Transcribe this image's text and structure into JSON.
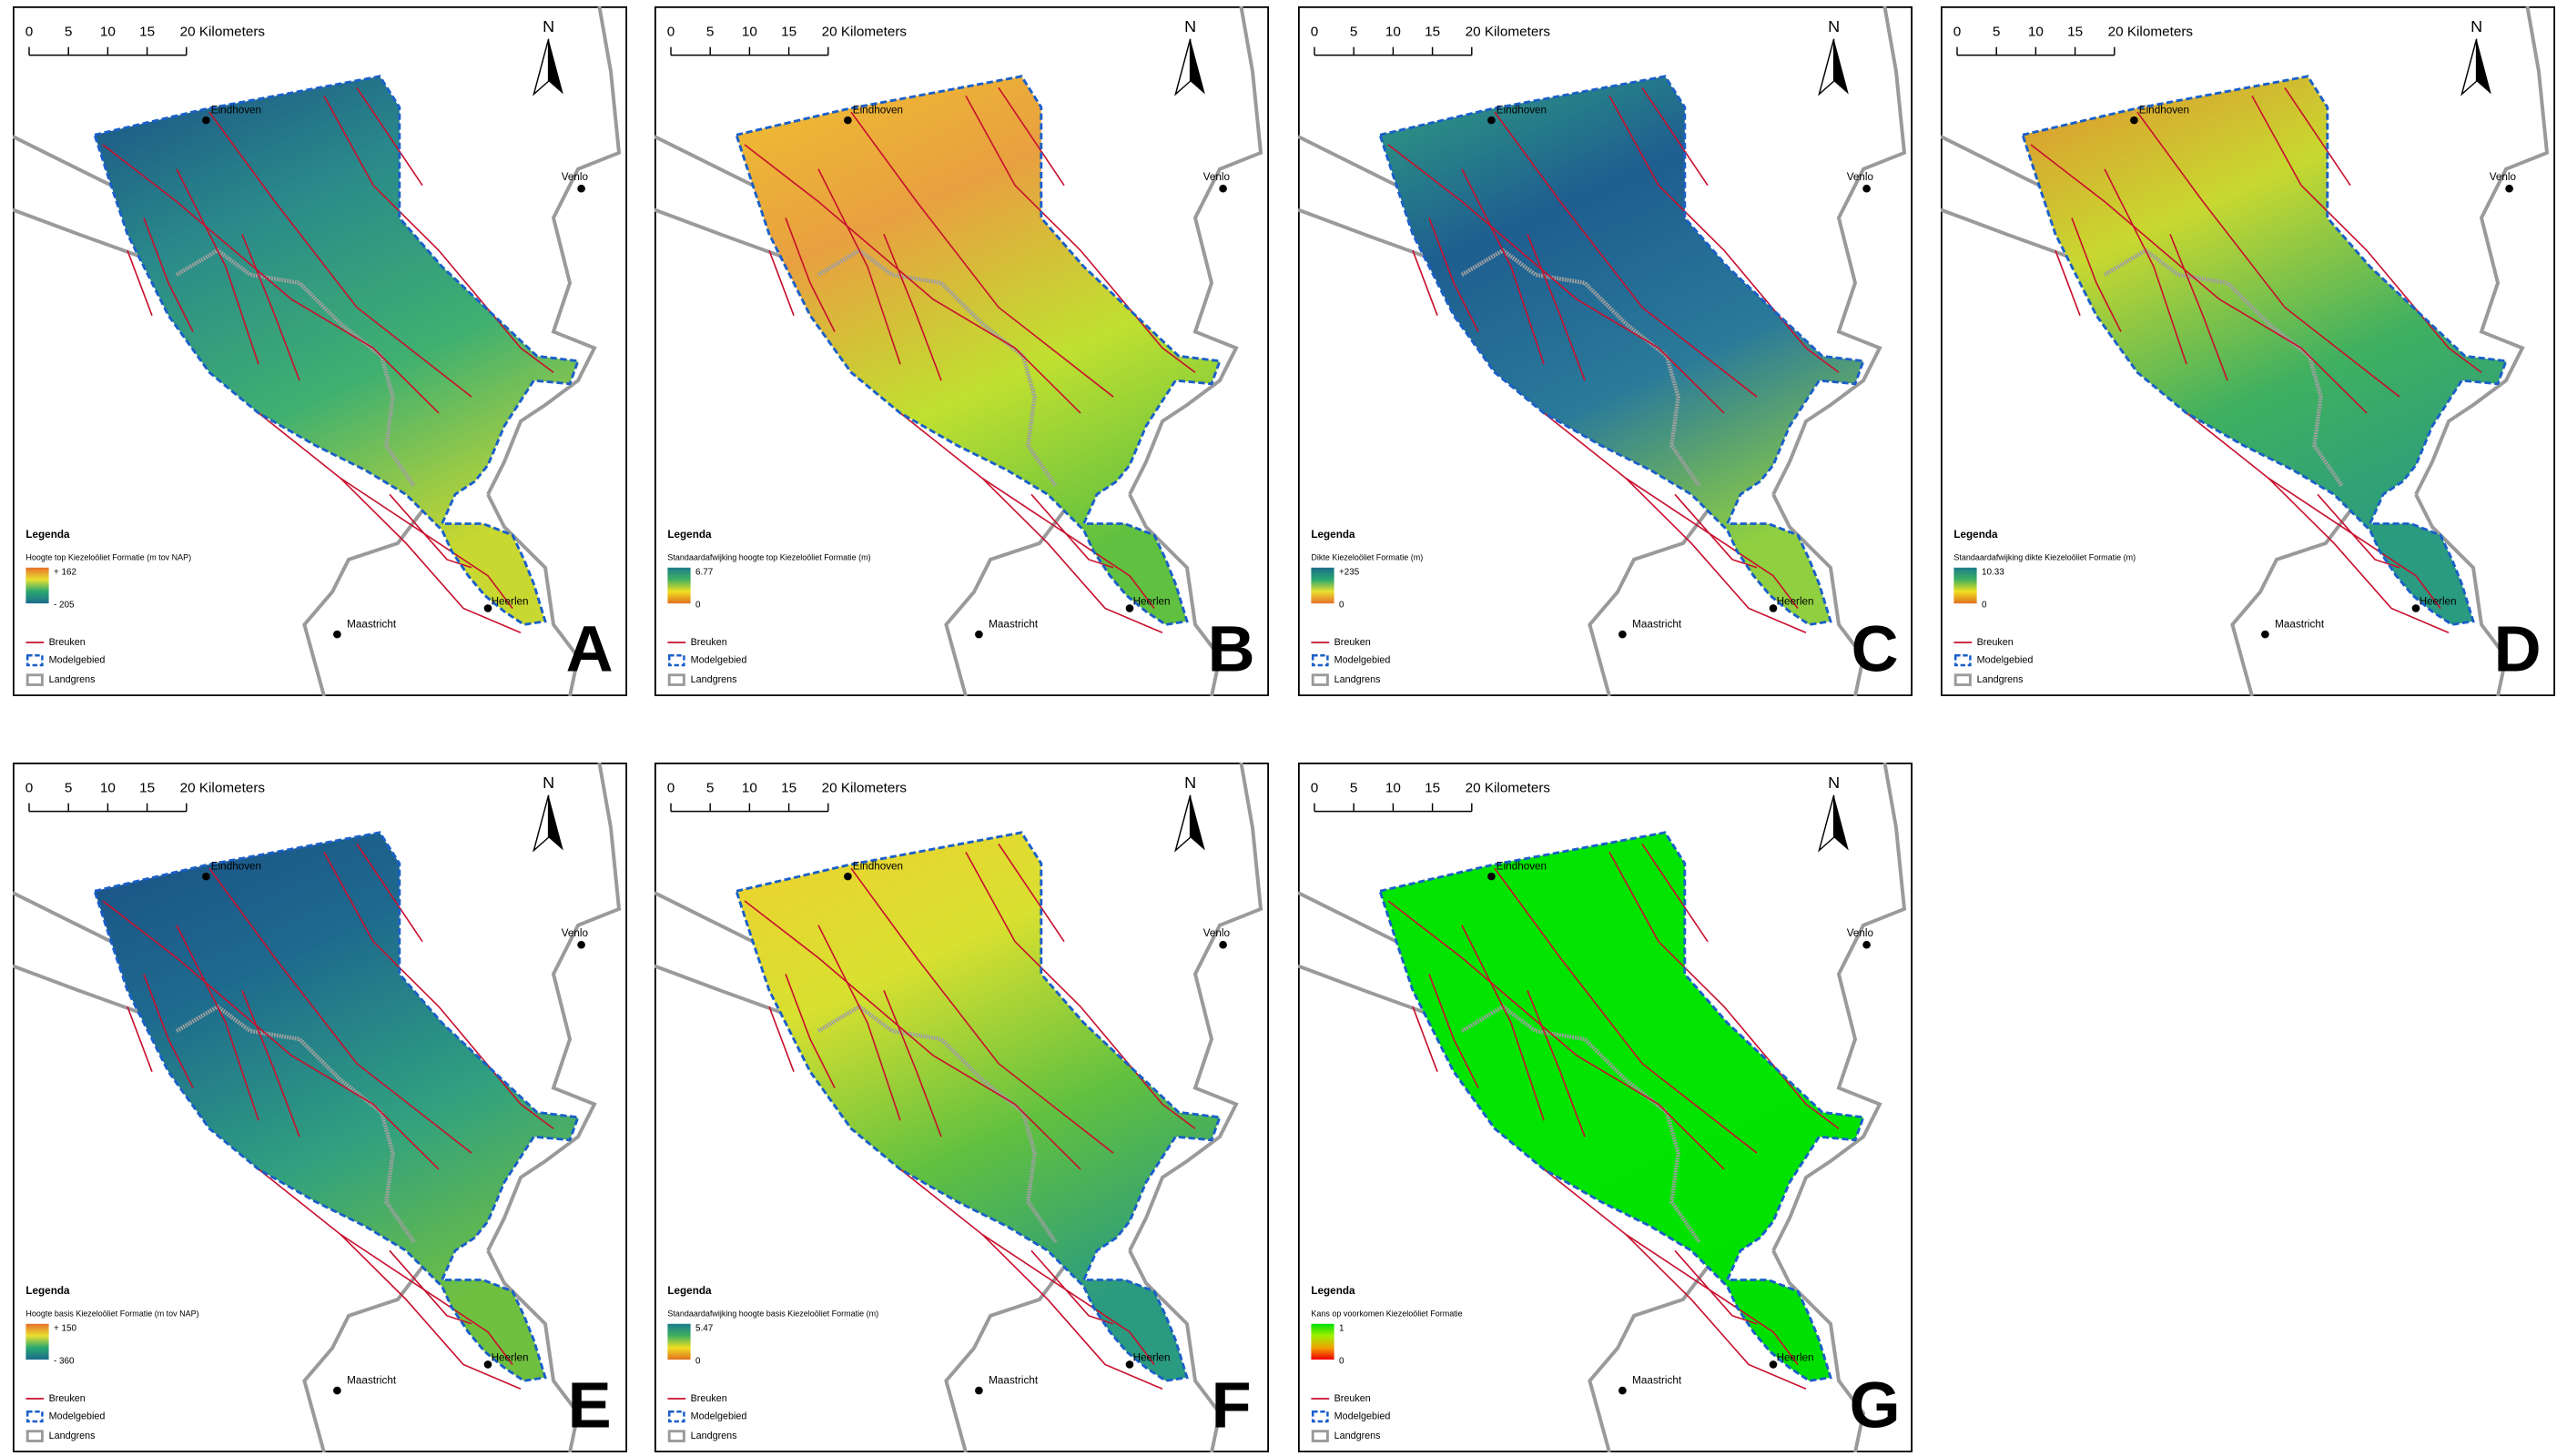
{
  "common": {
    "scale_labels": [
      "0",
      "5",
      "10",
      "15",
      "20 Kilometers"
    ],
    "north": "N",
    "cities": [
      "Eindhoven",
      "Venlo",
      "Maastricht",
      "Heerlen"
    ],
    "legend_heading": "Legenda",
    "legend_items": [
      "Breuken",
      "Modelgebied",
      "Landgrens"
    ]
  },
  "panels": [
    {
      "letter": "A",
      "legend_title": "Hoogte top Kiezeloöliet Formatie (m tov NAP)",
      "legend_max": "+ 162",
      "legend_min": "- 205",
      "legend_colors": [
        "#e8702a",
        "#e8e030",
        "#28a870",
        "#1c6c8c"
      ],
      "map_colors": [
        "#1a4f86",
        "#2a8a8a",
        "#40b070",
        "#c8d830"
      ]
    },
    {
      "letter": "B",
      "legend_title": "Standaardafwijking hoogte top Kiezeloöliet Formatie (m)",
      "legend_max": "6.77",
      "legend_min": "0",
      "legend_colors": [
        "#1c7c8c",
        "#40b060",
        "#f0e020",
        "#e07020"
      ],
      "map_colors": [
        "#f0c030",
        "#e8a040",
        "#c0e030",
        "#60c040"
      ]
    },
    {
      "letter": "C",
      "legend_title": "Dikte Kiezeloöliet Formatie (m)",
      "legend_max": "+235",
      "legend_min": "0",
      "legend_colors": [
        "#1c6c8c",
        "#28a870",
        "#e8e030",
        "#e8702a"
      ],
      "map_colors": [
        "#30a080",
        "#1e5e90",
        "#2a7a9a",
        "#90d040"
      ]
    },
    {
      "letter": "D",
      "legend_title": "Standaardafwijking dikte Kiezeloöliet Formatie (m)",
      "legend_max": "10.33",
      "legend_min": "0",
      "legend_colors": [
        "#1c7c8c",
        "#40b060",
        "#f0e020",
        "#e07020"
      ],
      "map_colors": [
        "#e09030",
        "#c8d830",
        "#40b060",
        "#2a9a80"
      ]
    },
    {
      "letter": "E",
      "legend_title": "Hoogte basis Kiezeloöliet Formatie (m tov NAP)",
      "legend_max": "+ 150",
      "legend_min": "- 360",
      "legend_colors": [
        "#e8702a",
        "#e8e030",
        "#28a870",
        "#1c6c8c"
      ],
      "map_colors": [
        "#1a4f86",
        "#1e6a8e",
        "#30a080",
        "#70c040"
      ]
    },
    {
      "letter": "F",
      "legend_title": "Standaardafwijking hoogte basis Kiezeloöliet Formatie (m)",
      "legend_max": "5.47",
      "legend_min": "0",
      "legend_colors": [
        "#1c7c8c",
        "#40b060",
        "#f0e020",
        "#e07020"
      ],
      "map_colors": [
        "#f0d030",
        "#d8e030",
        "#60c040",
        "#2a9a80"
      ]
    },
    {
      "letter": "G",
      "legend_title": "Kans op voorkomen Kiezeloöliet Formatie",
      "legend_max": "1",
      "legend_min": "0",
      "legend_colors": [
        "#00e000",
        "#a0f000",
        "#f0a000",
        "#f00000"
      ],
      "map_colors": [
        "#00e400",
        "#00e400",
        "#00e400",
        "#00e000"
      ]
    }
  ]
}
